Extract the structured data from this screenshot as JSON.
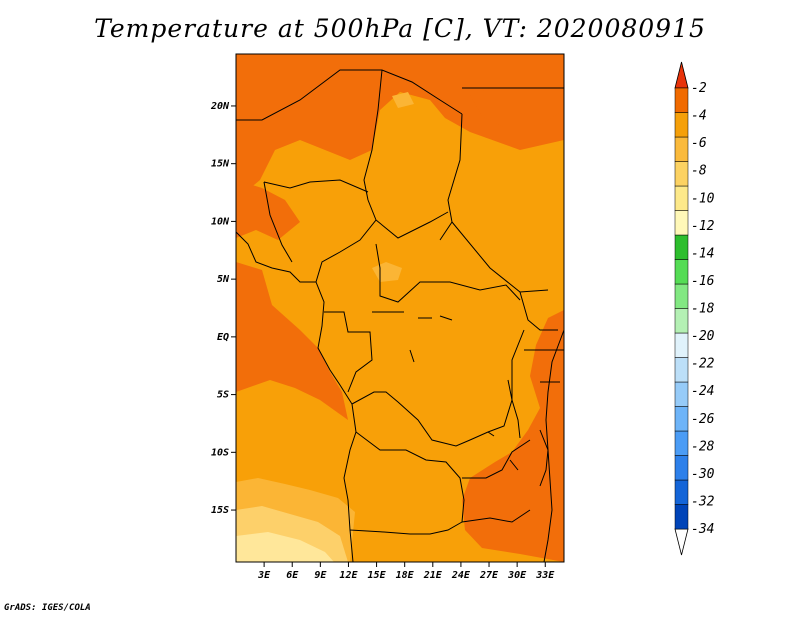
{
  "title": "Temperature at 500hPa [C], VT: 2020080915",
  "credit": "GrADS: IGES/COLA",
  "map": {
    "lon_range": [
      0,
      35
    ],
    "lat_range": [
      -19.5,
      24.5
    ],
    "x_ticks": [
      {
        "value": 3,
        "label": "3E"
      },
      {
        "value": 6,
        "label": "6E"
      },
      {
        "value": 9,
        "label": "9E"
      },
      {
        "value": 12,
        "label": "12E"
      },
      {
        "value": 15,
        "label": "15E"
      },
      {
        "value": 18,
        "label": "18E"
      },
      {
        "value": 21,
        "label": "21E"
      },
      {
        "value": 24,
        "label": "24E"
      },
      {
        "value": 27,
        "label": "27E"
      },
      {
        "value": 30,
        "label": "30E"
      },
      {
        "value": 33,
        "label": "33E"
      }
    ],
    "y_ticks": [
      {
        "value": 20,
        "label": "20N"
      },
      {
        "value": 15,
        "label": "15N"
      },
      {
        "value": 10,
        "label": "10N"
      },
      {
        "value": 5,
        "label": "5N"
      },
      {
        "value": 0,
        "label": "EQ"
      },
      {
        "value": -5,
        "label": "5S"
      },
      {
        "value": -10,
        "label": "10S"
      },
      {
        "value": -15,
        "label": "15S"
      }
    ]
  },
  "colorbar": {
    "colors": [
      "#000d80",
      "#0044b8",
      "#1465d8",
      "#2d80ea",
      "#4b9cf5",
      "#6eb4f8",
      "#96cbf8",
      "#bcdff8",
      "#e0f2fb",
      "#b4f0b4",
      "#82e882",
      "#55dc55",
      "#2dbe2d",
      "#fff8b8",
      "#fde98a",
      "#fcd262",
      "#faba3c",
      "#f5a00a",
      "#f06a00",
      "#e0420a"
    ],
    "labels": [
      "-34",
      "-32",
      "-30",
      "-28",
      "-26",
      "-24",
      "-22",
      "-20",
      "-18",
      "-16",
      "-14",
      "-12",
      "-10",
      "-8",
      "-6",
      "-4",
      "-2"
    ],
    "under_color": "#ffffff",
    "over_color": "#e8330a"
  },
  "field_colors": {
    "t4": "#f26e0a",
    "t6": "#f8a008",
    "t8": "#fbb535",
    "t10": "#fdd06a",
    "t12": "#ffe79a"
  }
}
